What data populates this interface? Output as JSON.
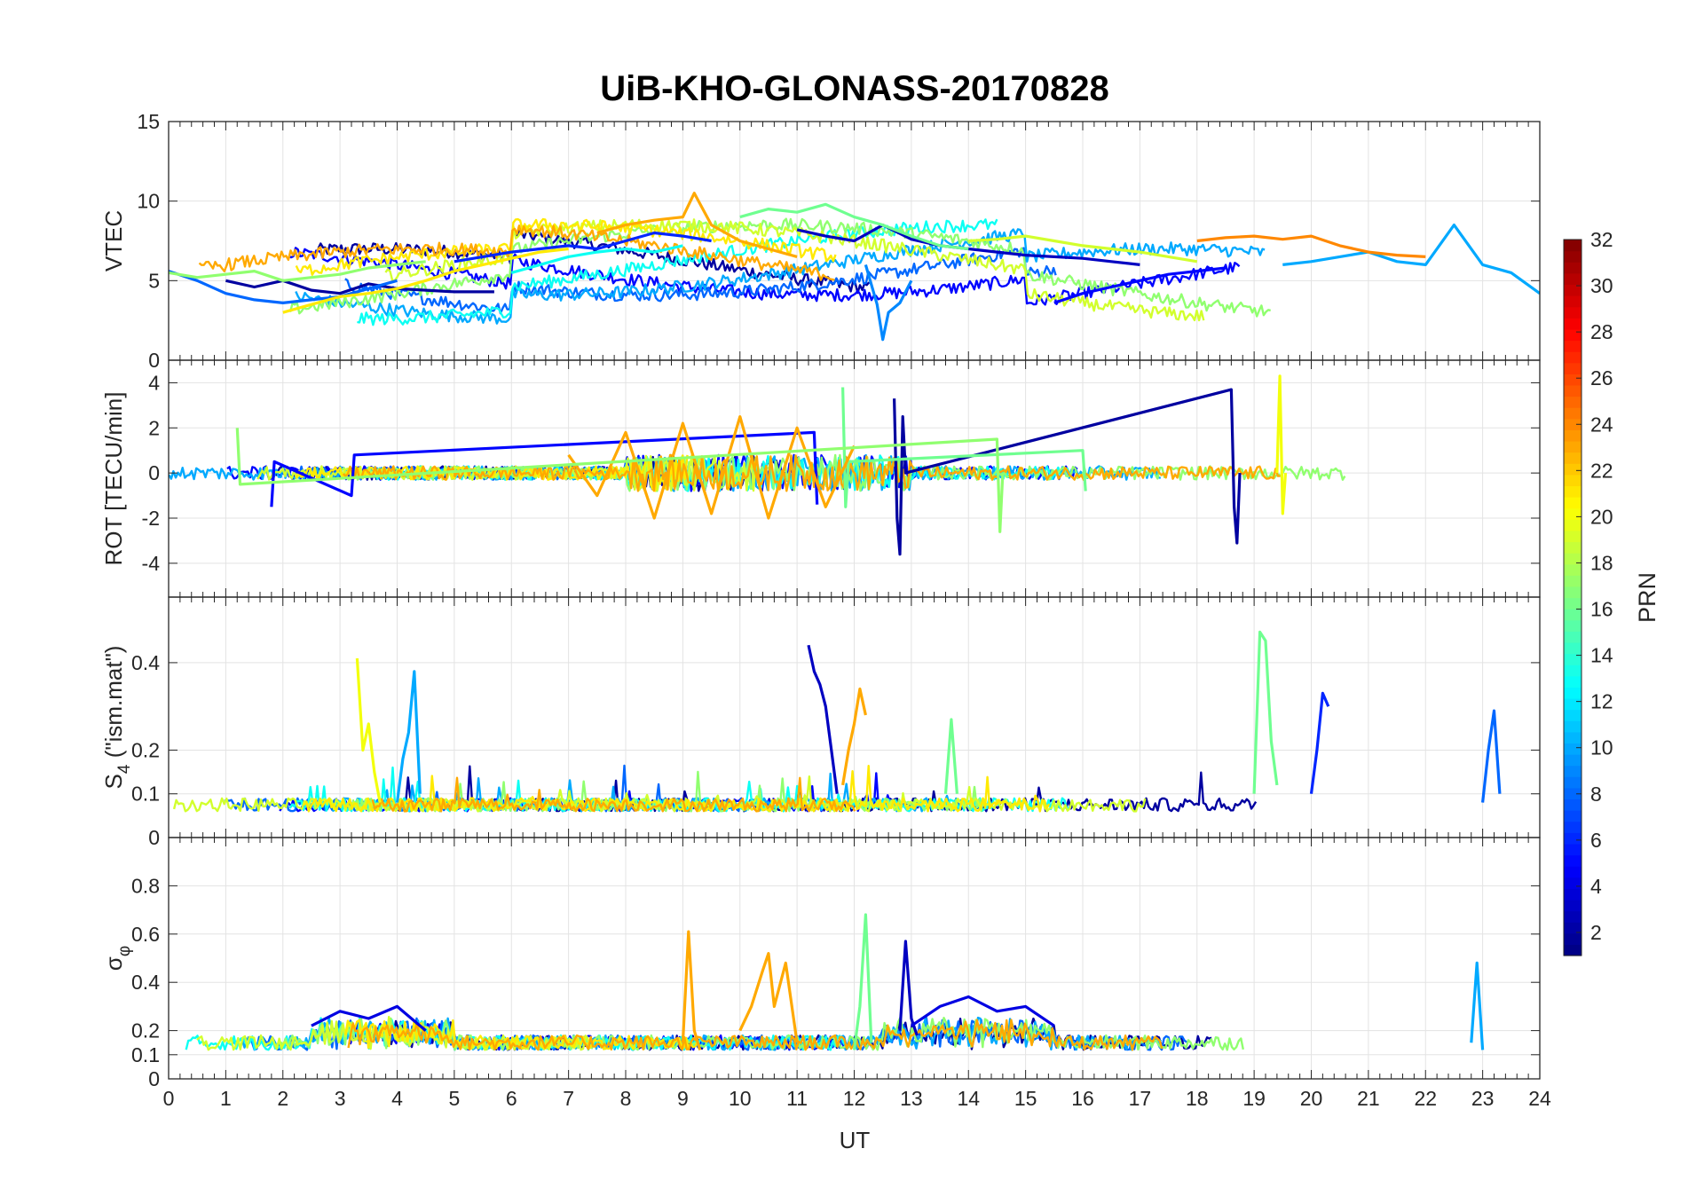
{
  "chart_data": {
    "type": "line",
    "title": "UiB-KHO-GLONASS-20170828",
    "xlabel": "UT",
    "xlim": [
      0,
      24
    ],
    "xticks": [
      0,
      1,
      2,
      3,
      4,
      5,
      6,
      7,
      8,
      9,
      10,
      11,
      12,
      13,
      14,
      15,
      16,
      17,
      18,
      19,
      20,
      21,
      22,
      23,
      24
    ],
    "colorbar": {
      "label": "PRN",
      "range": [
        1,
        32
      ],
      "ticks": [
        2,
        4,
        6,
        8,
        10,
        12,
        14,
        16,
        18,
        20,
        22,
        24,
        26,
        28,
        30,
        32
      ],
      "colormap": "jet"
    },
    "panels": [
      {
        "id": "vtec",
        "ylabel": "VTEC",
        "ylim": [
          0,
          15
        ],
        "yticks": [
          0,
          5,
          10,
          15
        ],
        "series": [
          {
            "prn": 2,
            "x": [
              1.0,
              1.5,
              2.0,
              2.5,
              3.0,
              3.5,
              4.0,
              4.5,
              5.0,
              5.5,
              5.7
            ],
            "y": [
              5.0,
              4.6,
              5.0,
              4.4,
              4.2,
              4.8,
              4.5,
              4.4,
              4.3,
              4.3,
              4.3
            ]
          },
          {
            "prn": 3,
            "x": [
              11.0,
              11.5,
              12.0,
              12.5,
              13.0,
              13.5,
              14.0,
              14.5,
              15.0,
              15.5,
              16.0,
              16.5,
              17.0
            ],
            "y": [
              8.2,
              7.8,
              7.5,
              8.5,
              7.6,
              7.2,
              7.0,
              6.8,
              6.6,
              6.5,
              6.4,
              6.2,
              6.0
            ]
          },
          {
            "prn": 5,
            "x": [
              15.5,
              16.0,
              16.5,
              17.0,
              17.5,
              18.0,
              18.5
            ],
            "y": [
              3.6,
              4.2,
              4.6,
              5.0,
              5.4,
              5.6,
              5.8
            ]
          },
          {
            "prn": 6,
            "x": [
              5.0,
              5.5,
              6.0,
              6.5,
              7.0,
              7.5,
              8.0,
              8.5,
              9.0,
              9.5
            ],
            "y": [
              6.2,
              6.5,
              6.8,
              7.0,
              7.2,
              7.0,
              7.5,
              8.0,
              7.8,
              7.5
            ]
          },
          {
            "prn": 8,
            "x": [
              0.0,
              0.5,
              1.0,
              1.5,
              2.0,
              2.5,
              3.0,
              3.5,
              4.0
            ],
            "y": [
              5.6,
              5.0,
              4.2,
              3.8,
              3.6,
              3.8,
              4.0,
              4.5,
              5.0
            ]
          },
          {
            "prn": 9,
            "x": [
              12.2,
              12.4,
              12.5,
              12.6,
              12.8,
              13.0
            ],
            "y": [
              6.0,
              3.5,
              1.3,
              3.0,
              3.6,
              5.0
            ]
          },
          {
            "prn": 10,
            "x": [
              19.5,
              20.0,
              20.5,
              21.0,
              21.5,
              22.0,
              22.5,
              23.0,
              23.5,
              24.0
            ],
            "y": [
              6.0,
              6.2,
              6.5,
              6.8,
              6.2,
              6.0,
              8.5,
              6.0,
              5.5,
              4.2
            ]
          },
          {
            "prn": 13,
            "x": [
              6.0,
              6.5,
              7.0,
              7.5,
              8.0,
              8.5,
              9.0
            ],
            "y": [
              5.5,
              6.0,
              6.5,
              6.8,
              7.0,
              6.8,
              7.2
            ]
          },
          {
            "prn": 16,
            "x": [
              10.0,
              10.5,
              11.0,
              11.5,
              12.0,
              12.5,
              13.0,
              13.5,
              14.0
            ],
            "y": [
              9.0,
              9.5,
              9.3,
              9.8,
              9.0,
              8.5,
              7.8,
              7.2,
              7.0
            ]
          },
          {
            "prn": 17,
            "x": [
              0.0,
              0.5,
              1.0,
              1.5,
              2.0,
              2.5,
              3.0,
              3.5,
              4.0,
              4.5
            ],
            "y": [
              5.5,
              5.2,
              5.4,
              5.6,
              5.0,
              5.2,
              5.4,
              5.8,
              6.0,
              6.2
            ]
          },
          {
            "prn": 19,
            "x": [
              14.0,
              14.5,
              15.0,
              15.5,
              16.0,
              16.5,
              17.0,
              17.5,
              18.0
            ],
            "y": [
              7.5,
              7.6,
              7.8,
              7.5,
              7.2,
              7.0,
              6.8,
              6.5,
              6.2
            ]
          },
          {
            "prn": 21,
            "x": [
              2.0,
              2.5,
              3.0,
              3.5,
              4.0,
              4.5,
              5.0,
              5.5,
              6.0,
              6.5,
              7.0
            ],
            "y": [
              3.0,
              3.5,
              4.0,
              4.2,
              4.5,
              5.0,
              5.6,
              6.0,
              6.4,
              6.8,
              7.0
            ]
          },
          {
            "prn": 23,
            "x": [
              7.5,
              8.0,
              8.5,
              9.0,
              9.2,
              9.5,
              10.0,
              10.5,
              11.0
            ],
            "y": [
              8.0,
              8.5,
              8.8,
              9.0,
              10.5,
              8.5,
              7.5,
              7.0,
              6.5
            ]
          },
          {
            "prn": 24,
            "x": [
              18.0,
              18.5,
              19.0,
              19.5,
              20.0,
              20.5,
              21.0,
              21.5,
              22.0
            ],
            "y": [
              7.5,
              7.7,
              7.8,
              7.6,
              7.8,
              7.2,
              6.8,
              6.6,
              6.5
            ]
          }
        ]
      },
      {
        "id": "rot",
        "ylabel": "ROT [TECU/min]",
        "ylim": [
          -5.5,
          5
        ],
        "yticks": [
          -4,
          -2,
          0,
          2,
          4
        ],
        "series": [
          {
            "prn": 2,
            "x": [
              12.7,
              12.75,
              12.8,
              12.85,
              12.9,
              18.6,
              18.65,
              18.7,
              18.75
            ],
            "y": [
              3.3,
              -2.0,
              -3.6,
              2.5,
              0.0,
              3.7,
              -1.5,
              -3.1,
              0.0
            ]
          },
          {
            "prn": 5,
            "x": [
              1.8,
              1.85,
              3.2,
              3.25,
              11.3,
              11.35
            ],
            "y": [
              -1.5,
              0.5,
              -1.0,
              0.8,
              1.8,
              -1.4
            ]
          },
          {
            "prn": 16,
            "x": [
              11.8,
              11.85,
              11.9,
              16.0,
              16.05
            ],
            "y": [
              3.8,
              -1.5,
              0.5,
              1.0,
              -0.8
            ]
          },
          {
            "prn": 20,
            "x": [
              19.4,
              19.45,
              19.5,
              19.55
            ],
            "y": [
              0.0,
              4.3,
              -1.8,
              0.0
            ]
          },
          {
            "prn": 23,
            "x": [
              7.0,
              7.5,
              8.0,
              8.5,
              9.0,
              9.5,
              10.0,
              10.5,
              11.0,
              11.5,
              12.0
            ],
            "y": [
              0.8,
              -1.0,
              1.8,
              -2.0,
              2.2,
              -1.8,
              2.5,
              -2.0,
              2.0,
              -1.5,
              1.2
            ]
          },
          {
            "prn": 17,
            "x": [
              1.2,
              1.25,
              14.5,
              14.55,
              14.6
            ],
            "y": [
              2.0,
              -0.5,
              1.5,
              -2.6,
              0.0
            ]
          }
        ]
      },
      {
        "id": "s4",
        "ylabel": "S4 (\"ism.mat\")",
        "ylabel_main": "S",
        "ylabel_sub": "4",
        "ylabel_tail": " (\"ism.mat\")",
        "ylim": [
          0,
          0.55
        ],
        "yticks": [
          0,
          0.1,
          0.2,
          0.4
        ],
        "series": [
          {
            "prn": 20,
            "x": [
              3.3,
              3.4,
              3.5,
              3.6,
              3.7
            ],
            "y": [
              0.41,
              0.2,
              0.26,
              0.15,
              0.08
            ]
          },
          {
            "prn": 10,
            "x": [
              4.0,
              4.1,
              4.2,
              4.3,
              4.4
            ],
            "y": [
              0.08,
              0.18,
              0.24,
              0.38,
              0.1
            ]
          },
          {
            "prn": 3,
            "x": [
              11.2,
              11.3,
              11.4,
              11.5,
              11.6,
              11.7
            ],
            "y": [
              0.44,
              0.38,
              0.35,
              0.3,
              0.2,
              0.1
            ]
          },
          {
            "prn": 23,
            "x": [
              11.8,
              11.9,
              12.0,
              12.1,
              12.2
            ],
            "y": [
              0.12,
              0.2,
              0.26,
              0.34,
              0.28
            ]
          },
          {
            "prn": 16,
            "x": [
              19.0,
              19.1,
              19.2,
              19.3,
              19.4
            ],
            "y": [
              0.1,
              0.47,
              0.45,
              0.22,
              0.12
            ]
          },
          {
            "prn": 6,
            "x": [
              20.0,
              20.1,
              20.2,
              20.3
            ],
            "y": [
              0.1,
              0.2,
              0.33,
              0.3
            ]
          },
          {
            "prn": 8,
            "x": [
              23.0,
              23.1,
              23.2,
              23.3
            ],
            "y": [
              0.08,
              0.2,
              0.29,
              0.1
            ]
          },
          {
            "prn": 16,
            "x": [
              13.6,
              13.7,
              13.8
            ],
            "y": [
              0.1,
              0.27,
              0.1
            ]
          }
        ]
      },
      {
        "id": "sigma-phi",
        "ylabel": "σφ",
        "ylabel_main": "σ",
        "ylabel_sub": "φ",
        "ylim": [
          0,
          1
        ],
        "yticks": [
          0,
          0.1,
          0.2,
          0.4,
          0.6,
          0.8
        ],
        "series": [
          {
            "prn": 23,
            "x": [
              9.0,
              9.1,
              9.2,
              9.3
            ],
            "y": [
              0.15,
              0.61,
              0.2,
              0.12
            ]
          },
          {
            "prn": 23,
            "x": [
              10.0,
              10.2,
              10.4,
              10.5,
              10.6,
              10.8,
              11.0
            ],
            "y": [
              0.2,
              0.3,
              0.45,
              0.52,
              0.3,
              0.48,
              0.15
            ]
          },
          {
            "prn": 16,
            "x": [
              12.0,
              12.1,
              12.2,
              12.3
            ],
            "y": [
              0.12,
              0.3,
              0.68,
              0.15
            ]
          },
          {
            "prn": 3,
            "x": [
              12.8,
              12.9,
              13.0,
              13.1
            ],
            "y": [
              0.2,
              0.57,
              0.25,
              0.18
            ]
          },
          {
            "prn": 4,
            "x": [
              2.5,
              3.0,
              3.5,
              4.0,
              4.5
            ],
            "y": [
              0.22,
              0.28,
              0.25,
              0.3,
              0.2
            ]
          },
          {
            "prn": 4,
            "x": [
              13.0,
              13.5,
              14.0,
              14.5,
              15.0,
              15.5
            ],
            "y": [
              0.22,
              0.3,
              0.34,
              0.28,
              0.3,
              0.22
            ]
          },
          {
            "prn": 10,
            "x": [
              22.8,
              22.9,
              23.0
            ],
            "y": [
              0.15,
              0.48,
              0.12
            ]
          }
        ]
      }
    ]
  }
}
